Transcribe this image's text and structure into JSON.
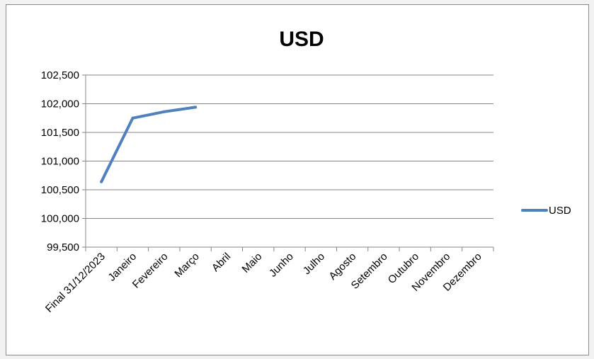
{
  "chart_data": {
    "type": "line",
    "title": "USD",
    "xlabel": "",
    "ylabel": "",
    "categories": [
      "Final 31/12/2023",
      "Janeiro",
      "Fevereiro",
      "Março",
      "Abril",
      "Maio",
      "Junho",
      "Julho",
      "Agosto",
      "Setembro",
      "Outubro",
      "Novembro",
      "Dezembro"
    ],
    "series": [
      {
        "name": "USD",
        "color": "#4f81bd",
        "values": [
          100.64,
          101.75,
          101.86,
          101.94,
          null,
          null,
          null,
          null,
          null,
          null,
          null,
          null,
          null
        ]
      }
    ],
    "ylim": [
      99.5,
      102.5
    ],
    "yticks": [
      99.5,
      100.0,
      100.5,
      101.0,
      101.5,
      102.0,
      102.5
    ],
    "ytick_labels": [
      "99,500",
      "100,000",
      "100,500",
      "101,000",
      "101,500",
      "102,000",
      "102,500"
    ],
    "grid": true,
    "legend_position": "right"
  }
}
